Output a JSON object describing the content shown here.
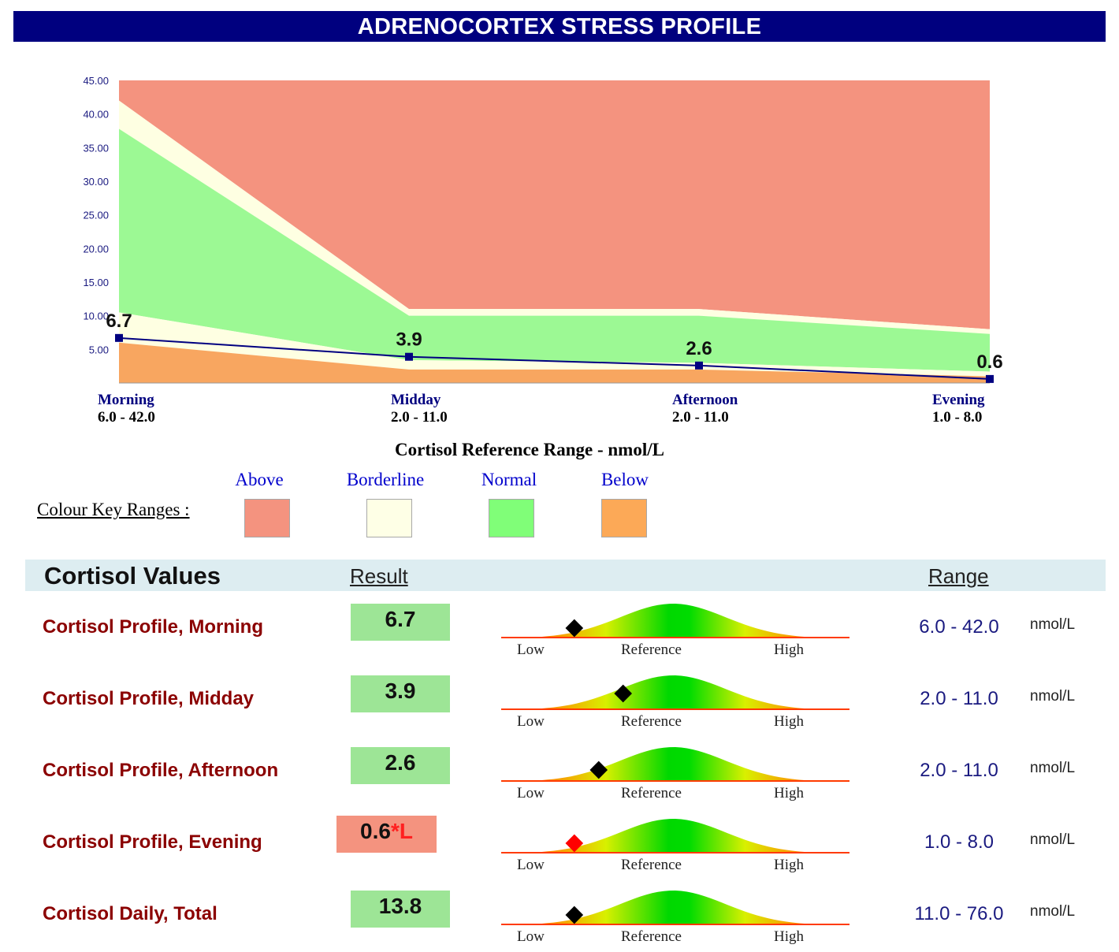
{
  "header": {
    "title": "ADRENOCORTEX STRESS PROFILE"
  },
  "chart_data": {
    "type": "area",
    "y_ticks": [
      "45.00",
      "40.00",
      "35.00",
      "30.00",
      "25.00",
      "20.00",
      "15.00",
      "10.00",
      "5.00"
    ],
    "ylim": [
      0,
      45
    ],
    "x": [
      "Morning",
      "Midday",
      "Afternoon",
      "Evening"
    ],
    "ranges": [
      "6.0 - 42.0",
      "2.0 - 11.0",
      "2.0 - 11.0",
      "1.0 - 8.0"
    ],
    "bands": {
      "below_top": [
        6.0,
        2.0,
        2.0,
        1.0
      ],
      "borderline_low": [
        10.5,
        3.4,
        3.0,
        1.7
      ],
      "normal_top": [
        37.8,
        10.0,
        10.0,
        7.3
      ],
      "borderline_high": [
        42.0,
        11.0,
        11.0,
        8.0
      ],
      "max": 45
    },
    "series": [
      {
        "values": [
          6.7,
          3.9,
          2.6,
          0.6
        ],
        "labels": [
          "6.7",
          "3.9",
          "2.6",
          "0.6"
        ]
      }
    ],
    "xlabel": "Cortisol Reference Range - nmol/L",
    "colors": {
      "above": "#f4937f",
      "borderline": "#feffe2",
      "normal": "#9cf994",
      "below": "#f8a660",
      "line": "#000080"
    }
  },
  "key": {
    "title": "Colour Key Ranges :",
    "items": [
      {
        "name": "Above",
        "color": "#f4937f"
      },
      {
        "name": "Borderline",
        "color": "#feffe6"
      },
      {
        "name": "Normal",
        "color": "#80fe78"
      },
      {
        "name": "Below",
        "color": "#fca957"
      }
    ]
  },
  "values": {
    "title": "Cortisol Values",
    "result_header": "Result",
    "range_header": "Range",
    "gauge_labels": {
      "low": "Low",
      "ref": "Reference",
      "high": "High"
    },
    "rows": [
      {
        "name": "Cortisol Profile, Morning",
        "result": "6.7",
        "flag": "",
        "range": "6.0 - 42.0",
        "unit": "nmol/L",
        "status": "normal",
        "marker": 0.21,
        "marker_color": "#000000"
      },
      {
        "name": "Cortisol Profile, Midday",
        "result": "3.9",
        "flag": "",
        "range": "2.0 - 11.0",
        "unit": "nmol/L",
        "status": "normal",
        "marker": 0.35,
        "marker_color": "#000000"
      },
      {
        "name": "Cortisol Profile, Afternoon",
        "result": "2.6",
        "flag": "",
        "range": "2.0 - 11.0",
        "unit": "nmol/L",
        "status": "normal",
        "marker": 0.28,
        "marker_color": "#000000"
      },
      {
        "name": "Cortisol Profile, Evening",
        "result": "0.6",
        "flag": "*L",
        "range": "1.0 - 8.0",
        "unit": "nmol/L",
        "status": "low",
        "marker": 0.21,
        "marker_color": "#ff0000"
      },
      {
        "name": "Cortisol Daily, Total",
        "result": "13.8",
        "flag": "",
        "range": "11.0 - 76.0",
        "unit": "nmol/L",
        "status": "normal",
        "marker": 0.21,
        "marker_color": "#000000"
      }
    ]
  }
}
